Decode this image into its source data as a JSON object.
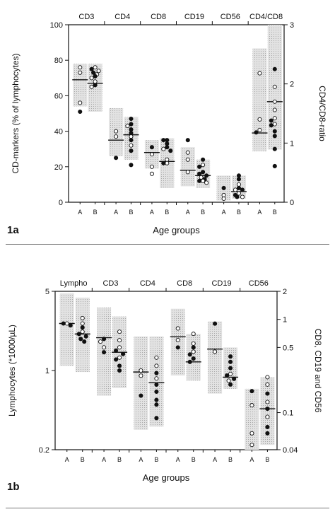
{
  "chart_data": [
    {
      "type": "scatter",
      "panel_label": "1a",
      "ylabel": "CD-markers (% of lymphocytes)",
      "y2label": "CD4/CD8-ratio",
      "xlabel": "Age groups",
      "ylim": [
        0,
        100
      ],
      "yticks": [
        "0",
        "20",
        "40",
        "60",
        "80",
        "100"
      ],
      "y2lim": [
        0,
        3
      ],
      "y2ticks": [
        "0",
        "1",
        "2",
        "3"
      ],
      "groups": [
        "CD3",
        "CD4",
        "CD8",
        "CD19",
        "CD56",
        "CD4/CD8"
      ],
      "subcategories": [
        "A",
        "B"
      ],
      "series": [
        {
          "group": "CD3",
          "sub": "A",
          "axis": "left",
          "range": [
            54,
            78
          ],
          "median": 69,
          "open": [
            76,
            73,
            56
          ],
          "filled": [
            51
          ]
        },
        {
          "group": "CD3",
          "sub": "B",
          "axis": "left",
          "range": [
            51,
            78
          ],
          "median": 67,
          "open": [
            76,
            74,
            72,
            70,
            68,
            65
          ],
          "filled": [
            75,
            73,
            71,
            66
          ]
        },
        {
          "group": "CD4",
          "sub": "A",
          "axis": "left",
          "range": [
            26,
            53
          ],
          "median": 35,
          "open": [
            40,
            37
          ],
          "filled": [
            25
          ]
        },
        {
          "group": "CD4",
          "sub": "B",
          "axis": "left",
          "range": [
            24,
            48
          ],
          "median": 38,
          "open": [
            43,
            37,
            32
          ],
          "filled": [
            47,
            44,
            41,
            39,
            35,
            29,
            21
          ]
        },
        {
          "group": "CD8",
          "sub": "A",
          "axis": "left",
          "range": [
            19,
            35
          ],
          "median": 28,
          "open": [
            27,
            20,
            16
          ],
          "filled": [
            31
          ]
        },
        {
          "group": "CD8",
          "sub": "B",
          "axis": "left",
          "range": [
            8,
            36
          ],
          "median": 23,
          "open": [
            30,
            24,
            22
          ],
          "filled": [
            35,
            35,
            33,
            31,
            29,
            22
          ]
        },
        {
          "group": "CD19",
          "sub": "A",
          "axis": "left",
          "range": [
            9,
            31
          ],
          "median": 18,
          "open": [
            28,
            24,
            17
          ],
          "filled": [
            35
          ]
        },
        {
          "group": "CD19",
          "sub": "B",
          "axis": "left",
          "range": [
            8,
            24
          ],
          "median": 15,
          "open": [
            21,
            14,
            12,
            11
          ],
          "filled": [
            24,
            20,
            17,
            16,
            15,
            13,
            12
          ]
        },
        {
          "group": "CD56",
          "sub": "A",
          "axis": "left",
          "range": [
            1,
            15
          ],
          "median": null,
          "open": [
            4,
            2
          ],
          "filled": [
            8
          ]
        },
        {
          "group": "CD56",
          "sub": "B",
          "axis": "left",
          "range": [
            2,
            15
          ],
          "median": 6,
          "open": [
            10,
            7,
            5,
            3
          ],
          "filled": [
            15,
            13,
            8,
            7,
            4,
            3
          ]
        },
        {
          "group": "CD4/CD8",
          "sub": "A",
          "axis": "right",
          "range": [
            0.86,
            2.6
          ],
          "median": 1.17,
          "open": [
            2.18,
            1.4,
            1.22
          ],
          "filled": [
            1.18
          ]
        },
        {
          "group": "CD4/CD8",
          "sub": "B",
          "axis": "right",
          "range": [
            0.89,
            3.0
          ],
          "median": 1.7,
          "open": [
            1.95,
            1.7,
            1.56,
            1.42,
            1.32
          ],
          "filled": [
            2.25,
            1.38,
            1.3,
            1.2,
            1.12,
            0.9,
            0.61
          ]
        }
      ]
    },
    {
      "type": "scatter",
      "panel_label": "1b",
      "ylabel": "Lymphocytes (*1000/µL)",
      "y2label": "CD8, CD19 and CD56",
      "xlabel": "Age groups",
      "yscale": "log",
      "ylim": [
        0.2,
        5
      ],
      "yticks": [
        0.2,
        1,
        5
      ],
      "y2scale": "log",
      "y2lim": [
        0.04,
        2
      ],
      "y2ticks": [
        0.04,
        0.1,
        0.5,
        1,
        2
      ],
      "groups": [
        "Lympho",
        "CD3",
        "CD4",
        "CD8",
        "CD19",
        "CD56"
      ],
      "subcategories": [
        "A",
        "B"
      ],
      "series": [
        {
          "group": "Lympho",
          "sub": "A",
          "axis": "left",
          "range": [
            1.1,
            4.8
          ],
          "median": 2.6,
          "open": [
            2.6
          ],
          "filled": [
            2.5,
            2.6
          ]
        },
        {
          "group": "Lympho",
          "sub": "B",
          "axis": "left",
          "range": [
            0.97,
            4.4
          ],
          "median": 2.1,
          "open": [
            2.9,
            2.6,
            2.2
          ],
          "filled": [
            2.4,
            2.1,
            2.0,
            1.9,
            1.8
          ]
        },
        {
          "group": "CD3",
          "sub": "A",
          "axis": "left",
          "range": [
            0.6,
            3.6
          ],
          "median": 1.95,
          "open": [
            1.8,
            1.6
          ],
          "filled": [
            1.9,
            1.45
          ]
        },
        {
          "group": "CD3",
          "sub": "B",
          "axis": "left",
          "range": [
            0.7,
            3.0
          ],
          "median": 1.45,
          "open": [
            2.2,
            1.85,
            1.6,
            1.3
          ],
          "filled": [
            1.5,
            1.4,
            1.25,
            1.1,
            1.0
          ]
        },
        {
          "group": "CD4",
          "sub": "A",
          "axis": "left",
          "range": [
            0.3,
            2.0
          ],
          "median": 0.97,
          "open": [
            1.0,
            0.9
          ],
          "filled": [
            0.6
          ]
        },
        {
          "group": "CD4",
          "sub": "B",
          "axis": "left",
          "range": [
            0.32,
            2.0
          ],
          "median": 0.78,
          "open": [
            1.3,
            1.1,
            0.85
          ],
          "filled": [
            0.95,
            0.75,
            0.65,
            0.55,
            0.5,
            0.38
          ]
        },
        {
          "group": "CD8",
          "sub": "A",
          "axis": "right",
          "range": [
            0.25,
            1.3
          ],
          "median": 0.65,
          "open": [
            0.8,
            0.6
          ],
          "filled": [
            0.5
          ]
        },
        {
          "group": "CD8",
          "sub": "B",
          "axis": "right",
          "range": [
            0.22,
            0.7
          ],
          "median": 0.35,
          "open": [
            0.7,
            0.55,
            0.45
          ],
          "filled": [
            0.5,
            0.42,
            0.38,
            0.35
          ]
        },
        {
          "group": "CD19",
          "sub": "A",
          "axis": "right",
          "range": [
            0.16,
            0.95
          ],
          "median": 0.48,
          "open": [
            0.45
          ],
          "filled": [
            0.9
          ]
        },
        {
          "group": "CD19",
          "sub": "B",
          "axis": "right",
          "range": [
            0.18,
            0.5
          ],
          "median": 0.24,
          "open": [
            0.26,
            0.22
          ],
          "filled": [
            0.4,
            0.35,
            0.3,
            0.25,
            0.23,
            0.2
          ]
        },
        {
          "group": "CD56",
          "sub": "A",
          "axis": "right",
          "range": [
            0.04,
            0.18
          ],
          "median": null,
          "open": [
            0.12,
            0.06,
            0.045
          ],
          "filled": [
            0.17
          ]
        },
        {
          "group": "CD56",
          "sub": "B",
          "axis": "right",
          "range": [
            0.045,
            0.24
          ],
          "median": 0.11,
          "open": [
            0.24,
            0.2,
            0.13,
            0.09
          ],
          "filled": [
            0.16,
            0.11,
            0.07,
            0.06
          ]
        }
      ]
    }
  ]
}
